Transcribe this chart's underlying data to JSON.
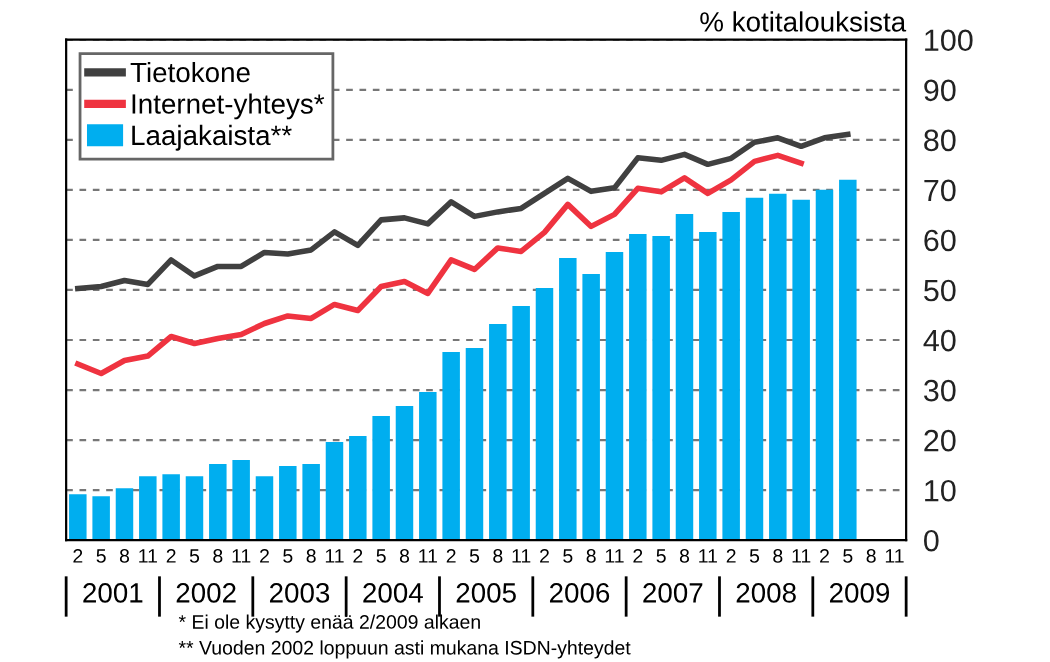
{
  "chart_data": {
    "type": "bar",
    "ylabel": "% kotitalouksista",
    "categories": [
      "2",
      "5",
      "8",
      "11",
      "2",
      "5",
      "8",
      "11",
      "2",
      "5",
      "8",
      "11",
      "2",
      "5",
      "8",
      "11",
      "2",
      "5",
      "8",
      "11",
      "2",
      "5",
      "8",
      "11",
      "2",
      "5",
      "8",
      "11",
      "2",
      "5",
      "8",
      "11",
      "2",
      "5",
      "8",
      "11"
    ],
    "series": [
      {
        "name": "Tietokone",
        "type": "line",
        "color": "#404040",
        "values": [
          50.3,
          50.7,
          51.9,
          51.1,
          56.0,
          52.8,
          54.7,
          54.7,
          57.5,
          57.2,
          58.0,
          61.6,
          58.9,
          64.0,
          64.4,
          63.2,
          67.6,
          64.7,
          65.6,
          66.3,
          69.3,
          72.3,
          69.7,
          70.4,
          76.4,
          75.9,
          77.1,
          75.1,
          76.3,
          79.5,
          80.4,
          78.7,
          80.4,
          81.1,
          null,
          null
        ]
      },
      {
        "name": "Internet-yhteys*",
        "type": "line",
        "color": "#ef3340",
        "values": [
          35.2,
          33.3,
          35.9,
          36.8,
          40.7,
          39.3,
          40.3,
          41.1,
          43.3,
          44.8,
          44.3,
          47.1,
          45.9,
          50.7,
          51.7,
          49.3,
          56.0,
          54.1,
          58.4,
          57.7,
          61.5,
          67.1,
          62.7,
          65.1,
          70.3,
          69.6,
          72.4,
          69.3,
          72.0,
          75.7,
          76.9,
          75.3,
          null,
          null,
          null,
          null
        ]
      },
      {
        "name": "Laajakaista**",
        "color": "#00aeef",
        "values": [
          9.2,
          8.8,
          10.4,
          12.8,
          13.2,
          12.8,
          15.2,
          16.0,
          12.8,
          14.8,
          15.2,
          19.6,
          20.8,
          24.8,
          26.8,
          29.6,
          37.6,
          38.4,
          43.2,
          46.8,
          50.4,
          56.4,
          53.2,
          57.6,
          61.2,
          60.8,
          65.2,
          61.6,
          65.6,
          68.4,
          69.2,
          68.0,
          70.0,
          72.0,
          null,
          null
        ]
      }
    ],
    "ylim": [
      0,
      100
    ],
    "yticks": [
      0,
      10,
      20,
      30,
      40,
      50,
      60,
      70,
      80,
      90,
      100
    ],
    "grid": "y",
    "legend": "top left",
    "line_style": "solid",
    "annotations": [
      "2001",
      "2002",
      "2003",
      "2004",
      "2005",
      "2006",
      "2007",
      "2008",
      "2009",
      "* Ei ole kysytty enää 2/2009 alkaen",
      "** Vuoden 2002 loppuun asti mukana ISDN-yhteydet"
    ]
  }
}
